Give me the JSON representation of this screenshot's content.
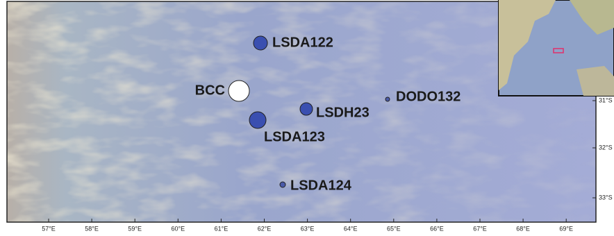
{
  "map": {
    "stations": [
      {
        "label": "LSDA122"
      },
      {
        "label": "BCC"
      },
      {
        "label": "DODO132"
      },
      {
        "label": "LSDH23"
      },
      {
        "label": "LSDA123"
      },
      {
        "label": "LSDA124"
      }
    ],
    "longitude_labels": [
      "57°E",
      "58°E",
      "59°E",
      "60°E",
      "61°E",
      "62°E",
      "63°E",
      "64°E",
      "65°E",
      "66°E",
      "67°E",
      "68°E",
      "69°E"
    ],
    "latitude_labels": [
      "31°S",
      "32°S",
      "33°S"
    ]
  }
}
